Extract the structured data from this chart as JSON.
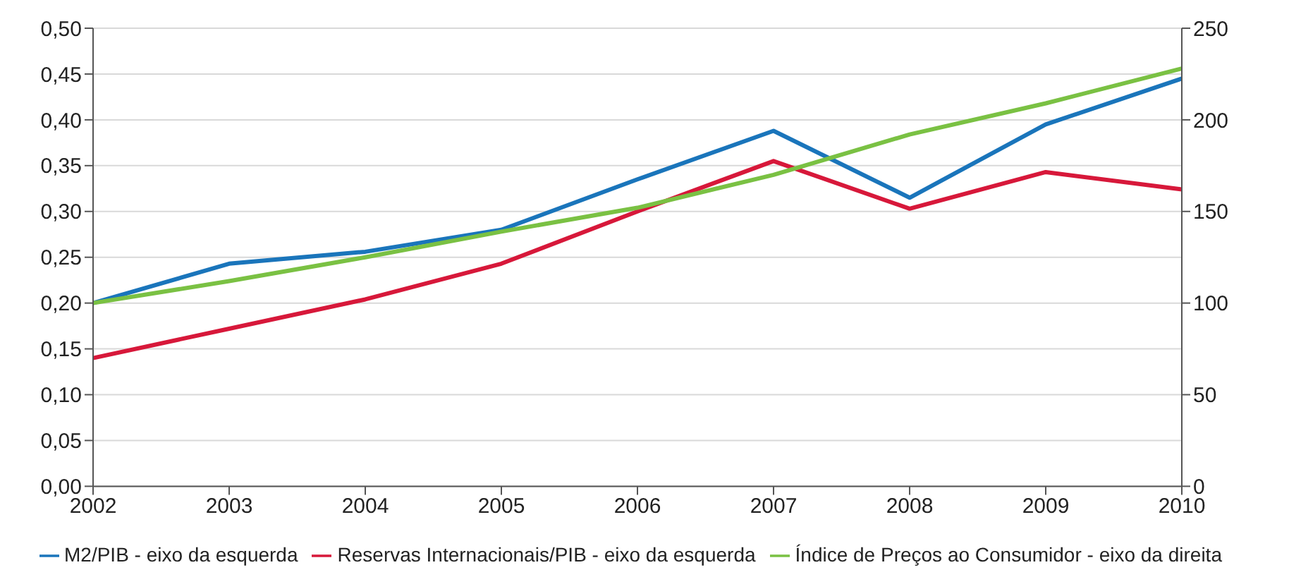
{
  "chart_data": {
    "type": "line",
    "categories": [
      "2002",
      "2003",
      "2004",
      "2005",
      "2006",
      "2007",
      "2008",
      "2009",
      "2010"
    ],
    "series": [
      {
        "name": "M2/PIB - eixo da esquerda",
        "color": "#1a75bb",
        "values": [
          0.2,
          0.243,
          0.256,
          0.28,
          0.335,
          0.388,
          0.315,
          0.395,
          0.445
        ]
      },
      {
        "name": "Reservas Internacionais/PIB - eixo da esquerda",
        "color": "#d7183a",
        "values": [
          0.14,
          0.172,
          0.204,
          0.243,
          0.3,
          0.355,
          0.303,
          0.343,
          0.324
        ]
      },
      {
        "name": "Índice de Preços ao Consumidor - eixo da direita",
        "color": "#7ac143",
        "axis": "y2",
        "values": [
          100,
          112,
          125,
          139,
          152,
          170,
          192,
          209,
          228
        ]
      }
    ],
    "ylim": [
      0,
      0.5
    ],
    "yticks": [
      {
        "value": 0,
        "label": "0,00"
      },
      {
        "value": 0.05,
        "label": "0,05"
      },
      {
        "value": 0.1,
        "label": "0,10"
      },
      {
        "value": 0.15,
        "label": "0,15"
      },
      {
        "value": 0.2,
        "label": "0,20"
      },
      {
        "value": 0.25,
        "label": "0,25"
      },
      {
        "value": 0.3,
        "label": "0,30"
      },
      {
        "value": 0.35,
        "label": "0,35"
      },
      {
        "value": 0.4,
        "label": "0,40"
      },
      {
        "value": 0.45,
        "label": "0,45"
      },
      {
        "value": 0.5,
        "label": "0,50"
      }
    ],
    "y2lim": [
      0,
      250
    ],
    "y2ticks": [
      0,
      50,
      100,
      150,
      200,
      250
    ],
    "grid": "y",
    "legend": "bottom",
    "marker": "none",
    "line_style": "solid"
  }
}
